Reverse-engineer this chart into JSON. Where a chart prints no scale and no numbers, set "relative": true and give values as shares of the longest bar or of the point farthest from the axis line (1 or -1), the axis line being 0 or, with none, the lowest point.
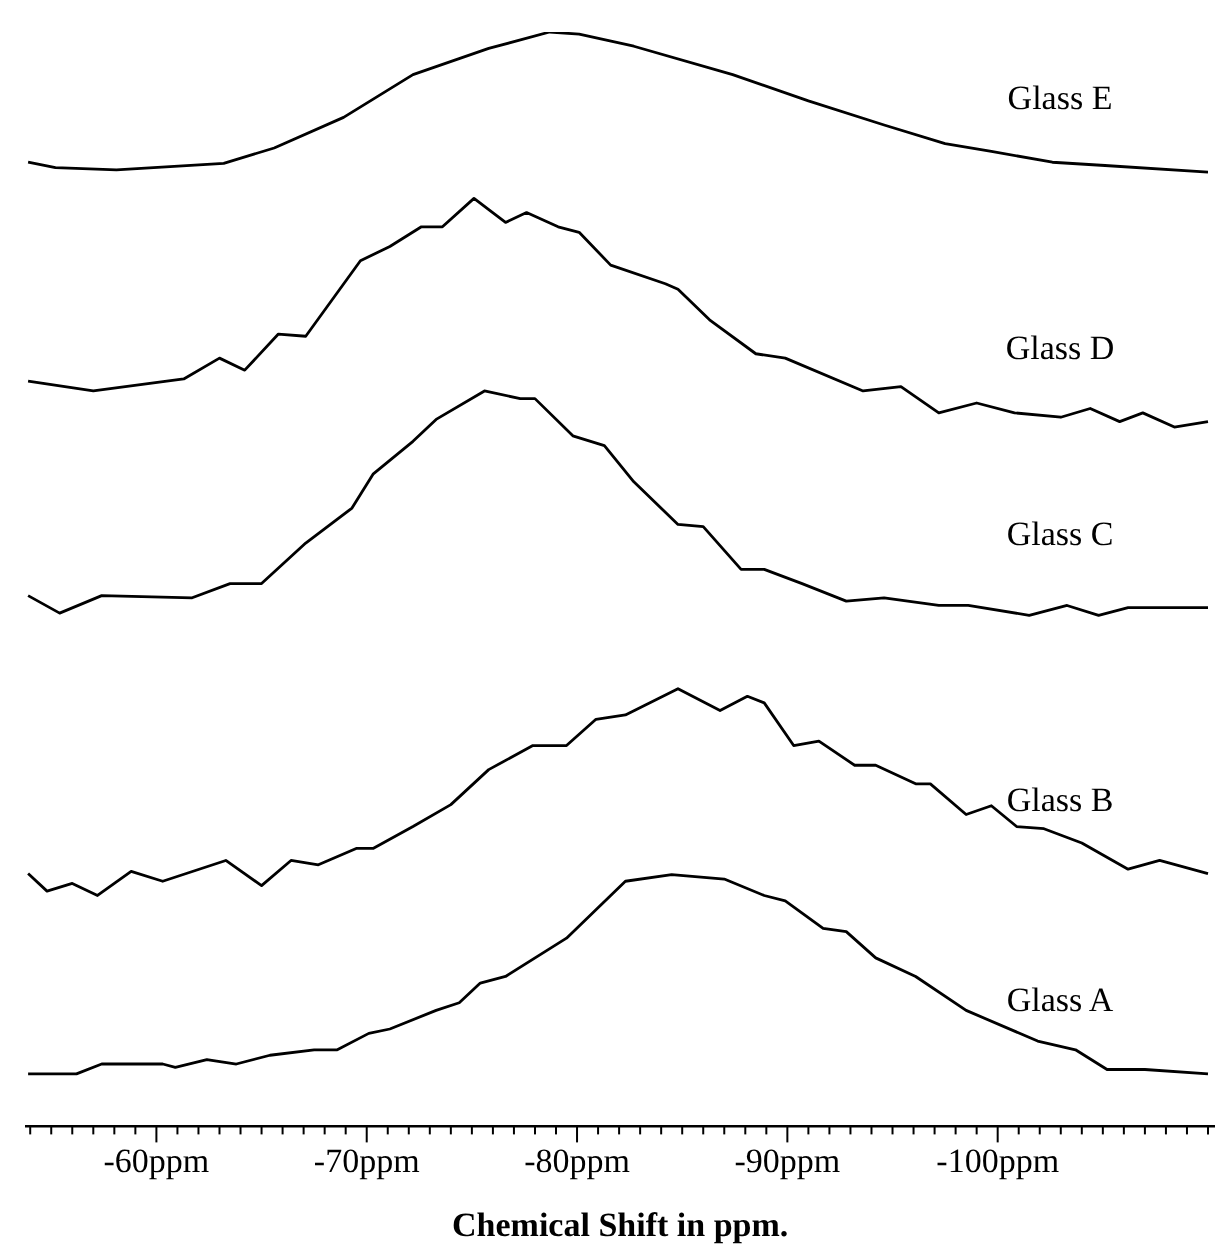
{
  "chart_data": {
    "type": "line",
    "relative": true,
    "xlabel": "Chemical Shift in ppm.",
    "xlim": [
      -53.8,
      -110.3
    ],
    "xticks": [
      {
        "value": -54,
        "label": null
      },
      {
        "value": -55,
        "label": null
      },
      {
        "value": -56,
        "label": null
      },
      {
        "value": -57,
        "label": null
      },
      {
        "value": -58,
        "label": null
      },
      {
        "value": -59,
        "label": null
      },
      {
        "value": -60,
        "label": "-60ppm"
      },
      {
        "value": -61,
        "label": null
      },
      {
        "value": -62,
        "label": null
      },
      {
        "value": -63,
        "label": null
      },
      {
        "value": -64,
        "label": null
      },
      {
        "value": -65,
        "label": null
      },
      {
        "value": -66,
        "label": null
      },
      {
        "value": -67,
        "label": null
      },
      {
        "value": -68,
        "label": null
      },
      {
        "value": -69,
        "label": null
      },
      {
        "value": -70,
        "label": "-70ppm"
      },
      {
        "value": -71,
        "label": null
      },
      {
        "value": -72,
        "label": null
      },
      {
        "value": -73,
        "label": null
      },
      {
        "value": -74,
        "label": null
      },
      {
        "value": -75,
        "label": null
      },
      {
        "value": -76,
        "label": null
      },
      {
        "value": -77,
        "label": null
      },
      {
        "value": -78,
        "label": null
      },
      {
        "value": -79,
        "label": null
      },
      {
        "value": -80,
        "label": "-80ppm"
      },
      {
        "value": -81,
        "label": null
      },
      {
        "value": -82,
        "label": null
      },
      {
        "value": -83,
        "label": null
      },
      {
        "value": -84,
        "label": null
      },
      {
        "value": -85,
        "label": null
      },
      {
        "value": -86,
        "label": null
      },
      {
        "value": -87,
        "label": null
      },
      {
        "value": -88,
        "label": null
      },
      {
        "value": -89,
        "label": null
      },
      {
        "value": -90,
        "label": "-90ppm"
      },
      {
        "value": -91,
        "label": null
      },
      {
        "value": -92,
        "label": null
      },
      {
        "value": -93,
        "label": null
      },
      {
        "value": -94,
        "label": null
      },
      {
        "value": -95,
        "label": null
      },
      {
        "value": -96,
        "label": null
      },
      {
        "value": -97,
        "label": null
      },
      {
        "value": -98,
        "label": null
      },
      {
        "value": -99,
        "label": null
      },
      {
        "value": -100,
        "label": "-100ppm"
      },
      {
        "value": -101,
        "label": null
      },
      {
        "value": -102,
        "label": null
      },
      {
        "value": -103,
        "label": null
      },
      {
        "value": -104,
        "label": null
      },
      {
        "value": -105,
        "label": null
      },
      {
        "value": -106,
        "label": null
      },
      {
        "value": -107,
        "label": null
      },
      {
        "value": -108,
        "label": null
      },
      {
        "value": -109,
        "label": null
      },
      {
        "value": -110,
        "label": null
      }
    ],
    "legend": false,
    "grid": false,
    "series": [
      {
        "name": "Glass E",
        "color": "#000000",
        "x": [
          -53.9,
          -55.2,
          -58.1,
          -63.2,
          -65.6,
          -68.9,
          -72.2,
          -75.8,
          -78.7,
          -80.1,
          -82.7,
          -87.4,
          -91.0,
          -94.6,
          -97.5,
          -99.7,
          -102.6,
          -105.1,
          -110.0
        ],
        "values": [
          0.881,
          0.876,
          0.874,
          0.88,
          0.894,
          0.922,
          0.961,
          0.985,
          1,
          0.998,
          0.987,
          0.961,
          0.937,
          0.915,
          0.898,
          0.891,
          0.881,
          0.878,
          0.872
        ]
      },
      {
        "name": "Glass D",
        "color": "#000000",
        "x": [
          -53.9,
          -57.0,
          -61.3,
          -63.0,
          -64.2,
          -65.8,
          -67.1,
          -69.7,
          -71.1,
          -72.6,
          -73.6,
          -75.1,
          -76.6,
          -77.6,
          -79.1,
          -80.1,
          -81.6,
          -84.2,
          -84.8,
          -86.3,
          -88.5,
          -89.9,
          -93.6,
          -95.4,
          -97.2,
          -99.0,
          -100.8,
          -103.0,
          -104.4,
          -105.8,
          -106.9,
          -108.4,
          -110.0
        ],
        "values": [
          0.681,
          0.672,
          0.683,
          0.702,
          0.691,
          0.724,
          0.722,
          0.791,
          0.804,
          0.822,
          0.822,
          0.848,
          0.826,
          0.835,
          0.822,
          0.817,
          0.787,
          0.77,
          0.765,
          0.737,
          0.706,
          0.702,
          0.672,
          0.676,
          0.652,
          0.661,
          0.652,
          0.648,
          0.656,
          0.644,
          0.652,
          0.639,
          0.644
        ]
      },
      {
        "name": "Glass C",
        "color": "#000000",
        "x": [
          -53.9,
          -55.4,
          -57.4,
          -61.7,
          -63.5,
          -65.0,
          -67.1,
          -69.3,
          -70.3,
          -72.2,
          -73.3,
          -75.6,
          -77.3,
          -78.0,
          -79.8,
          -81.3,
          -82.7,
          -84.8,
          -86.0,
          -87.8,
          -88.9,
          -90.7,
          -92.8,
          -94.6,
          -97.2,
          -98.6,
          -101.5,
          -103.3,
          -104.8,
          -106.2,
          -110.0
        ],
        "values": [
          0.485,
          0.469,
          0.485,
          0.483,
          0.496,
          0.496,
          0.533,
          0.565,
          0.596,
          0.626,
          0.646,
          0.672,
          0.665,
          0.665,
          0.631,
          0.622,
          0.589,
          0.55,
          0.548,
          0.509,
          0.509,
          0.496,
          0.48,
          0.483,
          0.476,
          0.476,
          0.467,
          0.476,
          0.467,
          0.474,
          0.474
        ]
      },
      {
        "name": "Glass B",
        "color": "#000000",
        "x": [
          -53.9,
          -54.8,
          -56.0,
          -57.2,
          -58.8,
          -60.3,
          -63.3,
          -65.0,
          -66.4,
          -67.7,
          -69.5,
          -70.3,
          -72.2,
          -74.0,
          -75.8,
          -77.9,
          -79.5,
          -80.9,
          -82.3,
          -84.8,
          -86.8,
          -88.1,
          -88.9,
          -90.3,
          -91.5,
          -93.2,
          -94.2,
          -96.1,
          -96.8,
          -98.5,
          -99.7,
          -100.9,
          -102.2,
          -104.0,
          -106.2,
          -107.7,
          -110.0
        ],
        "values": [
          0.231,
          0.215,
          0.222,
          0.211,
          0.233,
          0.224,
          0.243,
          0.22,
          0.243,
          0.239,
          0.254,
          0.254,
          0.274,
          0.294,
          0.326,
          0.348,
          0.348,
          0.372,
          0.376,
          0.4,
          0.38,
          0.393,
          0.387,
          0.348,
          0.352,
          0.33,
          0.33,
          0.313,
          0.313,
          0.285,
          0.293,
          0.274,
          0.272,
          0.259,
          0.235,
          0.243,
          0.231
        ]
      },
      {
        "name": "Glass A",
        "color": "#000000",
        "x": [
          -53.9,
          -56.2,
          -57.4,
          -60.3,
          -60.9,
          -62.4,
          -63.8,
          -65.4,
          -67.5,
          -68.6,
          -70.1,
          -71.1,
          -73.3,
          -74.4,
          -75.4,
          -76.6,
          -79.5,
          -82.3,
          -84.5,
          -87.0,
          -88.9,
          -89.9,
          -91.7,
          -92.8,
          -94.2,
          -96.1,
          -98.5,
          -101.9,
          -103.7,
          -105.2,
          -107.0,
          -110.0
        ],
        "values": [
          0.048,
          0.048,
          0.057,
          0.057,
          0.054,
          0.061,
          0.057,
          0.065,
          0.07,
          0.07,
          0.085,
          0.089,
          0.106,
          0.113,
          0.131,
          0.137,
          0.172,
          0.224,
          0.23,
          0.226,
          0.211,
          0.206,
          0.181,
          0.178,
          0.154,
          0.137,
          0.106,
          0.078,
          0.07,
          0.052,
          0.052,
          0.048
        ]
      }
    ]
  }
}
